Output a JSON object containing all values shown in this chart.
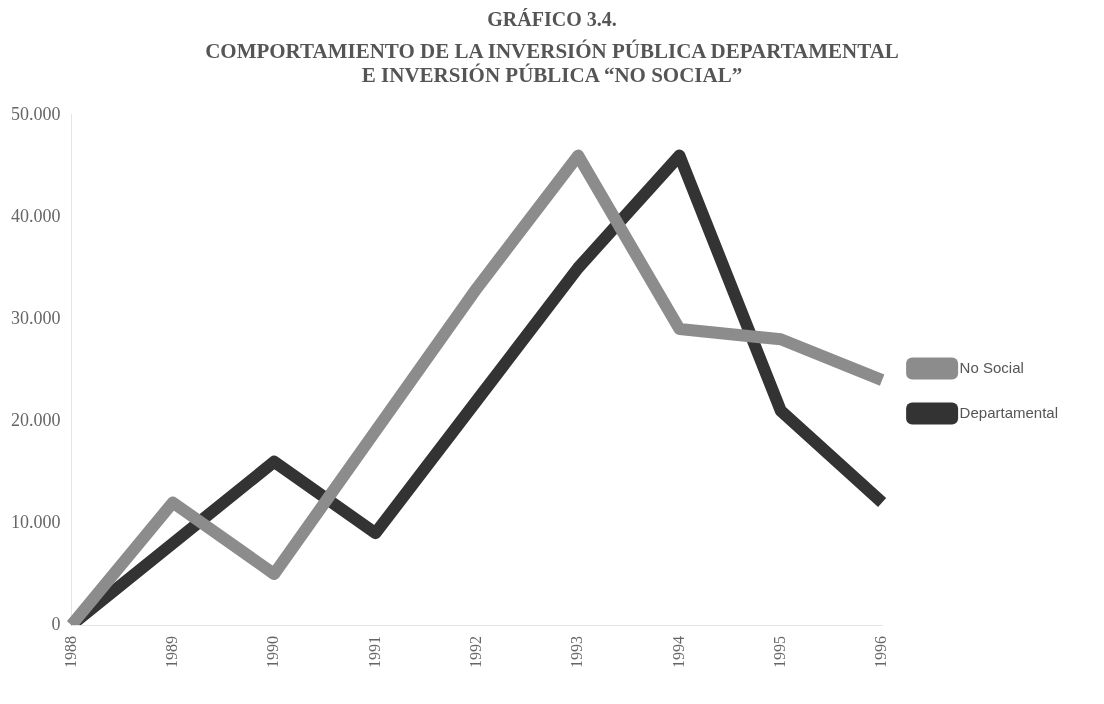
{
  "chart_data": {
    "type": "line",
    "title": "GRÁFICO 3.4.",
    "subtitle": "COMPORTAMIENTO DE LA INVERSIÓN PÚBLICA DEPARTAMENTAL\nE INVERSIÓN PÚBLICA “NO SOCIAL”",
    "categories": [
      "1988",
      "1989",
      "1990",
      "1991",
      "1992",
      "1993",
      "1994",
      "1995",
      "1996"
    ],
    "series": [
      {
        "name": "No Social",
        "color": "#8c8c8c",
        "values": [
          0,
          12000,
          5000,
          19000,
          33000,
          46000,
          29000,
          28000,
          24000
        ]
      },
      {
        "name": "Departamental",
        "color": "#333333",
        "values": [
          0,
          8000,
          16000,
          9000,
          22000,
          35000,
          46000,
          21000,
          12000
        ]
      }
    ],
    "ylim": [
      0,
      50000
    ],
    "yticks": [
      {
        "value": 0,
        "label": "0"
      },
      {
        "value": 10000,
        "label": "10.000"
      },
      {
        "value": 20000,
        "label": "20.000"
      },
      {
        "value": 30000,
        "label": "30.000"
      },
      {
        "value": 40000,
        "label": "40.000"
      },
      {
        "value": 50000,
        "label": "50.000"
      }
    ],
    "grid": false,
    "legend": "right",
    "marker": "none"
  }
}
